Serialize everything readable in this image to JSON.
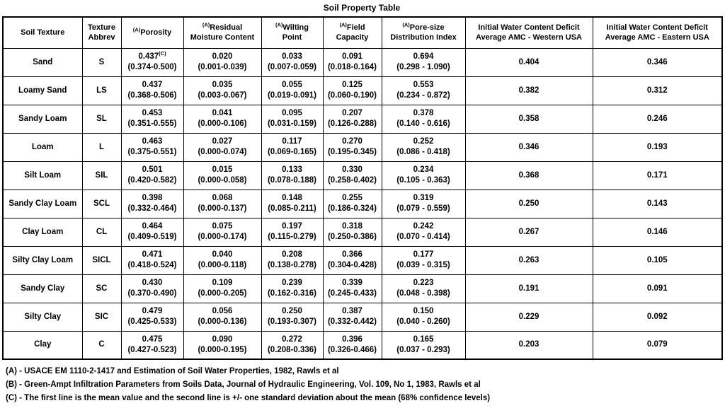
{
  "title": "Soil Property Table",
  "table": {
    "columns": [
      {
        "id": "soil-texture",
        "sup": "",
        "lines": [
          "Soil Texture"
        ]
      },
      {
        "id": "texture-abbrev",
        "sup": "",
        "lines": [
          "Texture",
          "Abbrev"
        ]
      },
      {
        "id": "porosity",
        "sup": "(A)",
        "lines": [
          "Porosity"
        ]
      },
      {
        "id": "residual-moisture",
        "sup": "(A)",
        "lines": [
          "Residual",
          "Moisture Content"
        ]
      },
      {
        "id": "wilting-point",
        "sup": "(A)",
        "lines": [
          "Wilting",
          "Point"
        ]
      },
      {
        "id": "field-capacity",
        "sup": "(A)",
        "lines": [
          "Field",
          "Capacity"
        ]
      },
      {
        "id": "pore-size",
        "sup": "(A)",
        "lines": [
          "Pore-size",
          "Distribution Index"
        ]
      },
      {
        "id": "deficit-western",
        "sup": "",
        "lines": [
          "Initial Water Content Deficit",
          "Average AMC - Western USA"
        ]
      },
      {
        "id": "deficit-eastern",
        "sup": "",
        "lines": [
          "Initial Water Content Deficit",
          "Average AMC - Eastern USA"
        ]
      }
    ],
    "rows": [
      {
        "texture": "Sand",
        "abbrev": "S",
        "porosity": {
          "mean": "0.437",
          "sup": "(C)",
          "range": "(0.374-0.500)"
        },
        "residual": {
          "mean": "0.020",
          "range": "(0.001-0.039)"
        },
        "wilting": {
          "mean": "0.033",
          "range": "(0.007-0.059)"
        },
        "field": {
          "mean": "0.091",
          "range": "(0.018-0.164)"
        },
        "poresize": {
          "mean": "0.694",
          "range": "(0.298 - 1.090)"
        },
        "western": "0.404",
        "eastern": "0.346"
      },
      {
        "texture": "Loamy Sand",
        "abbrev": "LS",
        "porosity": {
          "mean": "0.437",
          "range": "(0.368-0.506)"
        },
        "residual": {
          "mean": "0.035",
          "range": "(0.003-0.067)"
        },
        "wilting": {
          "mean": "0.055",
          "range": "(0.019-0.091)"
        },
        "field": {
          "mean": "0.125",
          "range": "(0.060-0.190)"
        },
        "poresize": {
          "mean": "0.553",
          "range": "(0.234 - 0.872)"
        },
        "western": "0.382",
        "eastern": "0.312"
      },
      {
        "texture": "Sandy Loam",
        "abbrev": "SL",
        "porosity": {
          "mean": "0.453",
          "range": "(0.351-0.555)"
        },
        "residual": {
          "mean": "0.041",
          "range": "(0.000-0.106)"
        },
        "wilting": {
          "mean": "0.095",
          "range": "(0.031-0.159)"
        },
        "field": {
          "mean": "0.207",
          "range": "(0.126-0.288)"
        },
        "poresize": {
          "mean": "0.378",
          "range": "(0.140 - 0.616)"
        },
        "western": "0.358",
        "eastern": "0.246"
      },
      {
        "texture": "Loam",
        "abbrev": "L",
        "porosity": {
          "mean": "0.463",
          "range": "(0.375-0.551)"
        },
        "residual": {
          "mean": "0.027",
          "range": "(0.000-0.074)"
        },
        "wilting": {
          "mean": "0.117",
          "range": "(0.069-0.165)"
        },
        "field": {
          "mean": "0.270",
          "range": "(0.195-0.345)"
        },
        "poresize": {
          "mean": "0.252",
          "range": "(0.086 - 0.418)"
        },
        "western": "0.346",
        "eastern": "0.193"
      },
      {
        "texture": "Silt Loam",
        "abbrev": "SIL",
        "porosity": {
          "mean": "0.501",
          "range": "(0.420-0.582)"
        },
        "residual": {
          "mean": "0.015",
          "range": "(0.000-0.058)"
        },
        "wilting": {
          "mean": "0.133",
          "range": "(0.078-0.188)"
        },
        "field": {
          "mean": "0.330",
          "range": "(0.258-0.402)"
        },
        "poresize": {
          "mean": "0.234",
          "range": "(0.105 - 0.363)"
        },
        "western": "0.368",
        "eastern": "0.171"
      },
      {
        "texture": "Sandy Clay Loam",
        "abbrev": "SCL",
        "porosity": {
          "mean": "0.398",
          "range": "(0.332-0.464)"
        },
        "residual": {
          "mean": "0.068",
          "range": "(0.000-0.137)"
        },
        "wilting": {
          "mean": "0.148",
          "range": "(0.085-0.211)"
        },
        "field": {
          "mean": "0.255",
          "range": "(0.186-0.324)"
        },
        "poresize": {
          "mean": "0.319",
          "range": "(0.079 - 0.559)"
        },
        "western": "0.250",
        "eastern": "0.143"
      },
      {
        "texture": "Clay Loam",
        "abbrev": "CL",
        "porosity": {
          "mean": "0.464",
          "range": "(0.409-0.519)"
        },
        "residual": {
          "mean": "0.075",
          "range": "(0.000-0.174)"
        },
        "wilting": {
          "mean": "0.197",
          "range": "(0.115-0.279)"
        },
        "field": {
          "mean": "0.318",
          "range": "(0.250-0.386)"
        },
        "poresize": {
          "mean": "0.242",
          "range": "(0.070 - 0.414)"
        },
        "western": "0.267",
        "eastern": "0.146"
      },
      {
        "texture": "Silty Clay Loam",
        "abbrev": "SICL",
        "porosity": {
          "mean": "0.471",
          "range": "(0.418-0.524)"
        },
        "residual": {
          "mean": "0.040",
          "range": "(0.000-0.118)"
        },
        "wilting": {
          "mean": "0.208",
          "range": "(0.138-0.278)"
        },
        "field": {
          "mean": "0.366",
          "range": "(0.304-0.428)"
        },
        "poresize": {
          "mean": "0.177",
          "range": "(0.039 - 0.315)"
        },
        "western": "0.263",
        "eastern": "0.105"
      },
      {
        "texture": "Sandy Clay",
        "abbrev": "SC",
        "porosity": {
          "mean": "0.430",
          "range": "(0.370-0.490)"
        },
        "residual": {
          "mean": "0.109",
          "range": "(0.000-0.205)"
        },
        "wilting": {
          "mean": "0.239",
          "range": "(0.162-0.316)"
        },
        "field": {
          "mean": "0.339",
          "range": "(0.245-0.433)"
        },
        "poresize": {
          "mean": "0.223",
          "range": "(0.048 - 0.398)"
        },
        "western": "0.191",
        "eastern": "0.091"
      },
      {
        "texture": "Silty Clay",
        "abbrev": "SIC",
        "porosity": {
          "mean": "0.479",
          "range": "(0.425-0.533)"
        },
        "residual": {
          "mean": "0.056",
          "range": "(0.000-0.136)"
        },
        "wilting": {
          "mean": "0.250",
          "range": "(0.193-0.307)"
        },
        "field": {
          "mean": "0.387",
          "range": "(0.332-0.442)"
        },
        "poresize": {
          "mean": "0.150",
          "range": "(0.040 - 0.260)"
        },
        "western": "0.229",
        "eastern": "0.092"
      },
      {
        "texture": "Clay",
        "abbrev": "C",
        "porosity": {
          "mean": "0.475",
          "range": "(0.427-0.523)"
        },
        "residual": {
          "mean": "0.090",
          "range": "(0.000-0.195)"
        },
        "wilting": {
          "mean": "0.272",
          "range": "(0.208-0.336)"
        },
        "field": {
          "mean": "0.396",
          "range": "(0.326-0.466)"
        },
        "poresize": {
          "mean": "0.165",
          "range": "(0.037 - 0.293)"
        },
        "western": "0.203",
        "eastern": "0.079"
      }
    ]
  },
  "footnotes": [
    "(A) - USACE EM 1110-2-1417 and Estimation of Soil Water Properties, 1982, Rawls et al",
    "(B) - Green-Ampt Infiltration Parameters from Soils Data, Journal of Hydraulic Engineering, Vol. 109, No 1, 1983, Rawls et al",
    "(C) - The first line is the mean value and the second line is +/- one standard deviation about the mean (68% confidence levels)"
  ]
}
